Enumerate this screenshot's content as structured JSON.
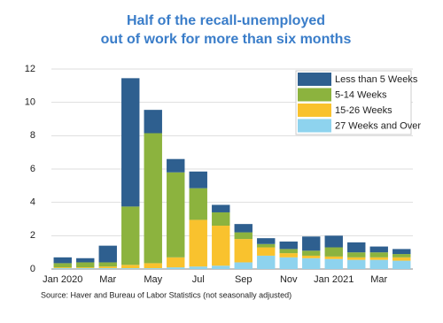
{
  "chart_data": {
    "type": "stacked_bar",
    "title": "Half of the recall-unemployed",
    "subtitle": "out of work for more than six months",
    "source": "Source: Haver and Bureau of Labor Statistics (not seasonally adjusted)",
    "categories": [
      "Jan 2020",
      null,
      "Mar",
      null,
      "May",
      null,
      "Jul",
      null,
      "Sep",
      null,
      "Nov",
      null,
      "Jan 2021",
      null,
      "Mar",
      null
    ],
    "series": [
      {
        "name": "Less than 5 Weeks",
        "color": "#2e5f8f",
        "values": [
          0.35,
          0.25,
          1.0,
          7.7,
          1.4,
          0.8,
          1.0,
          0.45,
          0.5,
          0.35,
          0.45,
          0.85,
          0.7,
          0.6,
          0.35,
          0.3
        ]
      },
      {
        "name": "5-14 Weeks",
        "color": "#8cb33e",
        "values": [
          0.25,
          0.3,
          0.25,
          3.5,
          7.8,
          5.1,
          1.9,
          0.8,
          0.4,
          0.2,
          0.25,
          0.3,
          0.55,
          0.3,
          0.3,
          0.2
        ]
      },
      {
        "name": "15-26 Weeks",
        "color": "#f9c22e",
        "values": [
          0.05,
          0.05,
          0.1,
          0.2,
          0.3,
          0.6,
          2.8,
          2.4,
          1.4,
          0.5,
          0.25,
          0.15,
          0.15,
          0.15,
          0.15,
          0.2
        ]
      },
      {
        "name": "27 Weeks and Over",
        "color": "#8ed3ee",
        "values": [
          0.05,
          0.05,
          0.05,
          0.05,
          0.05,
          0.1,
          0.15,
          0.2,
          0.4,
          0.8,
          0.7,
          0.65,
          0.6,
          0.55,
          0.55,
          0.5
        ]
      }
    ],
    "ylim": [
      0,
      12
    ],
    "yticks": [
      0,
      2,
      4,
      6,
      8,
      10,
      12
    ],
    "grid": true,
    "legend": "top-right"
  }
}
